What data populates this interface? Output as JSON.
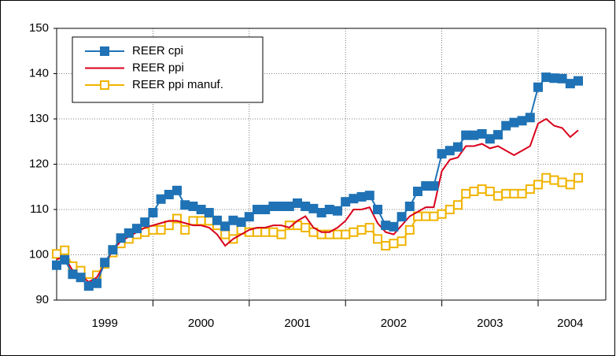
{
  "chart_data": {
    "type": "line",
    "categories": [
      null,
      null,
      null,
      null,
      null,
      null,
      "1999",
      null,
      null,
      null,
      null,
      null,
      null,
      null,
      null,
      null,
      null,
      null,
      "2000",
      null,
      null,
      null,
      null,
      null,
      null,
      null,
      null,
      null,
      null,
      null,
      "2001",
      null,
      null,
      null,
      null,
      null,
      null,
      null,
      null,
      null,
      null,
      null,
      "2002",
      null,
      null,
      null,
      null,
      null,
      null,
      null,
      null,
      null,
      null,
      null,
      "2003",
      null,
      null,
      null,
      null,
      null,
      null,
      null,
      null,
      null,
      "2004",
      null
    ],
    "series": [
      {
        "name": "REER cpi",
        "color": "#1f72b5",
        "marker": "filled-square",
        "values": [
          97.7,
          98.9,
          95.7,
          95,
          93.1,
          93.7,
          98.3,
          101.1,
          103.7,
          104.8,
          105.8,
          107.2,
          109.3,
          112.3,
          113.3,
          114.2,
          111,
          110.7,
          110,
          109.3,
          107.6,
          106.3,
          107.6,
          107.2,
          108.4,
          110,
          110,
          110.7,
          110.7,
          110.7,
          111.4,
          110.7,
          110.2,
          109.3,
          110,
          109.7,
          111.7,
          112.4,
          112.8,
          113.1,
          110,
          106.5,
          106.2,
          108.4,
          110.7,
          114,
          115.2,
          115.2,
          122.3,
          123,
          123.8,
          126.4,
          126.4,
          126.7,
          125.6,
          126.5,
          128.5,
          129.2,
          129.6,
          130.3,
          137,
          139.2,
          139,
          138.9,
          137.8,
          138.4
        ]
      },
      {
        "name": "REER ppi",
        "color": "#d9001b",
        "marker": "none",
        "values": [
          99,
          99.5,
          96.5,
          95.5,
          94,
          95,
          98,
          101,
          103,
          104,
          105,
          106,
          106.5,
          107,
          107.5,
          107.5,
          107,
          106.5,
          106.5,
          106,
          104.5,
          102,
          103.5,
          104.5,
          105.5,
          106,
          106,
          106.5,
          106.5,
          106,
          107.5,
          108.5,
          106,
          105,
          105,
          106,
          107.5,
          110,
          110,
          110.5,
          107,
          105,
          104.5,
          106.5,
          108.5,
          109.5,
          110.5,
          110.5,
          118.5,
          121,
          121.5,
          124,
          124,
          124.5,
          123.5,
          124,
          123,
          122,
          123,
          124,
          129,
          130,
          128.5,
          128,
          126,
          127.5
        ]
      },
      {
        "name": "REER ppi manuf.",
        "color": "#f0b400",
        "marker": "hollow-square",
        "values": [
          100.2,
          101,
          97.5,
          96.5,
          94,
          95.5,
          98,
          100.5,
          102.5,
          103.5,
          104.5,
          105,
          105.5,
          105.5,
          106.5,
          108,
          105.5,
          107.5,
          107.5,
          107.5,
          106.5,
          104.5,
          103.5,
          105.5,
          105,
          105,
          105,
          105,
          104.5,
          106.5,
          106.5,
          106,
          105,
          104.5,
          104.5,
          104.5,
          104.5,
          105,
          105.5,
          106,
          103.5,
          102,
          102.5,
          103,
          105.5,
          108.5,
          108.5,
          108.5,
          109,
          110,
          111,
          113.5,
          114,
          114.5,
          114,
          113,
          113.5,
          113.5,
          113.5,
          114.5,
          115.5,
          117,
          116.5,
          116,
          115.5,
          117
        ]
      }
    ],
    "ylim": [
      90,
      150
    ],
    "yticks": [
      90,
      100,
      110,
      120,
      130,
      140,
      150
    ],
    "grid": true,
    "legend": "top-left"
  }
}
